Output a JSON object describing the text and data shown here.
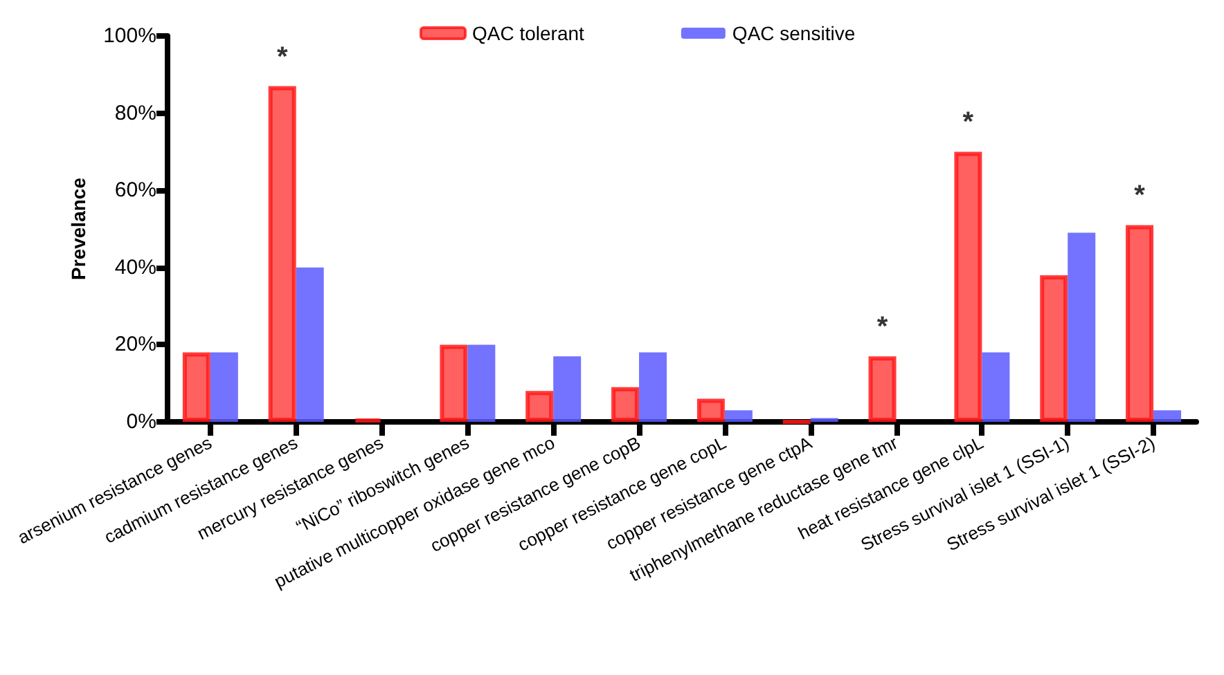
{
  "chart_data": {
    "type": "bar",
    "ylabel": "Prevelance",
    "categories": [
      "arsenium resistance genes",
      "cadmium resistance genes",
      "mercury resistance genes",
      "“NiCo” riboswitch genes",
      "putative multicopper oxidase gene mco",
      "copper resistance gene copB",
      "copper resistance gene copL",
      "copper resistance gene ctpA",
      "triphenylmethane reductase gene tmr",
      "heat resistance gene clpL",
      "Stress survival islet 1 (SSI-1)",
      "Stress survival islet 1 (SSI-2)"
    ],
    "series": [
      {
        "name": "QAC tolerant",
        "color": "#ff4444",
        "values": [
          18,
          87,
          0.7,
          20,
          8,
          9,
          6,
          0,
          17,
          70,
          38,
          51
        ]
      },
      {
        "name": "QAC sensitive",
        "color": "#5a5aff",
        "values": [
          18,
          40,
          0,
          20,
          17,
          18,
          3,
          1,
          0,
          18,
          49,
          3
        ]
      }
    ],
    "ylim": [
      0,
      100
    ],
    "yticks": [
      {
        "value": 0,
        "label": "0%"
      },
      {
        "value": 20,
        "label": "20%"
      },
      {
        "value": 40,
        "label": "40%"
      },
      {
        "value": 60,
        "label": "60%"
      },
      {
        "value": 80,
        "label": "80%"
      },
      {
        "value": 100,
        "label": "100%"
      }
    ],
    "annotations": [
      {
        "text": "*",
        "x": "cadmium resistance genes",
        "y": 87
      },
      {
        "text": "*",
        "x": "triphenylmethane reductase gene tmr",
        "y": 17
      },
      {
        "text": "*",
        "x": "heat resistance gene clpL",
        "y": 70
      },
      {
        "text": "*",
        "x": "Stress survival islet 1 (SSI-2)",
        "y": 51
      }
    ],
    "legend": "top",
    "grid": false
  }
}
